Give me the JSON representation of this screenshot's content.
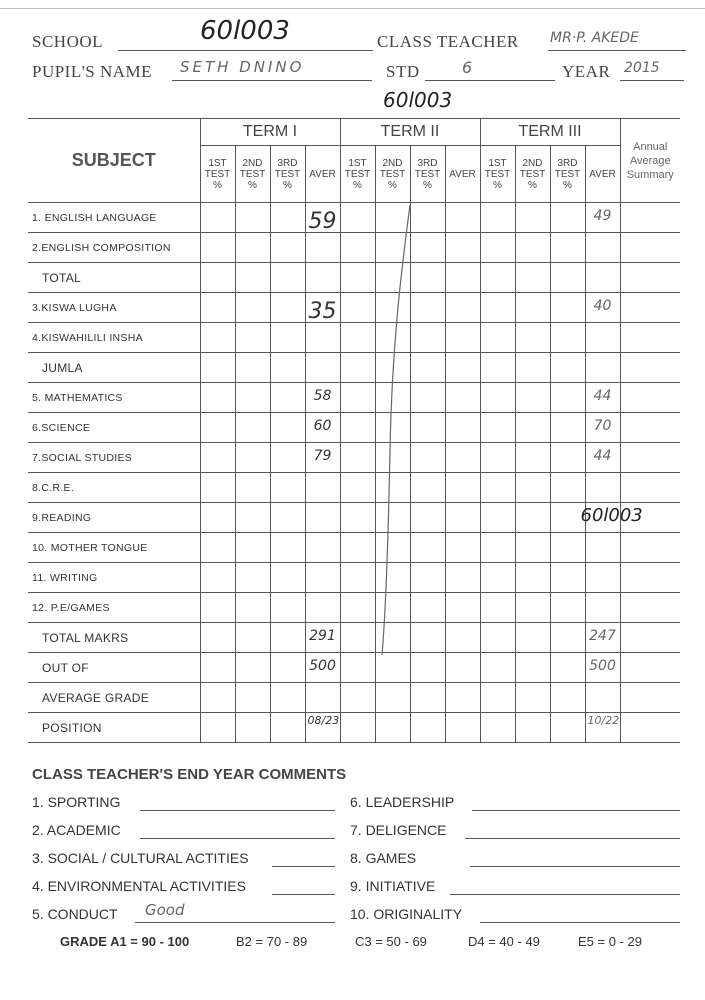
{
  "header": {
    "school_label": "SCHOOL",
    "school_value": "60l003",
    "class_teacher_label": "CLASS TEACHER",
    "class_teacher_value": "MR·P. AKEDE",
    "pupil_name_label": "PUPIL'S NAME",
    "pupil_name_value": "SETH DNINO",
    "std_label": "STD",
    "std_value": "6",
    "year_label": "YEAR",
    "year_value": "2015",
    "stamp_code": "60l003"
  },
  "table": {
    "subject_header": "SUBJECT",
    "terms": [
      "TERM I",
      "TERM II",
      "TERM III"
    ],
    "subcolumns": [
      {
        "line1": "1ST",
        "line2": "TEST",
        "line3": "%"
      },
      {
        "line1": "2ND",
        "line2": "TEST",
        "line3": "%"
      },
      {
        "line1": "3RD",
        "line2": "TEST",
        "line3": "%"
      },
      {
        "line1": "AVER",
        "line2": "",
        "line3": ""
      }
    ],
    "annual_header": [
      "Annual",
      "Average",
      "Summary"
    ],
    "rows": [
      {
        "label": "1. ENGLISH LANGUAGE",
        "t1_aver": "59",
        "t3_aver": "49"
      },
      {
        "label": "2.ENGLISH COMPOSITION"
      },
      {
        "label": "TOTAL",
        "big": true
      },
      {
        "label": "3.KISWA LUGHA",
        "t1_aver": "35",
        "t3_aver": "40"
      },
      {
        "label": "4.KISWAHILILI INSHA"
      },
      {
        "label": "JUMLA",
        "big": true
      },
      {
        "label": "5. MATHEMATICS",
        "t1_aver": "58",
        "t3_aver": "44"
      },
      {
        "label": "6.SCIENCE",
        "t1_aver": "60",
        "t3_aver": "70"
      },
      {
        "label": "7.SOCIAL STUDIES",
        "t1_aver": "79",
        "t3_aver": "44"
      },
      {
        "label": "8.C.R.E."
      },
      {
        "label": "9.READING",
        "annual_note": "60l003"
      },
      {
        "label": "10. MOTHER TONGUE"
      },
      {
        "label": "11. WRITING"
      },
      {
        "label": "12. P.E/GAMES"
      },
      {
        "label": "TOTAL MAKRS",
        "big": true,
        "t1_aver": "291",
        "t3_aver": "247"
      },
      {
        "label": "OUT OF",
        "big": true,
        "t1_aver": "500",
        "t3_aver": "500"
      },
      {
        "label": "AVERAGE GRADE",
        "big": true
      },
      {
        "label": "POSITION",
        "big": true,
        "t1_aver": "08/23",
        "t3_aver": "10/22"
      }
    ]
  },
  "comments": {
    "title": "CLASS TEACHER'S END YEAR COMMENTS",
    "items": [
      {
        "label": "1. SPORTING",
        "value": ""
      },
      {
        "label": "2. ACADEMIC",
        "value": ""
      },
      {
        "label": "3. SOCIAL / CULTURAL ACTITIES",
        "value": ""
      },
      {
        "label": "4. ENVIRONMENTAL ACTIVITIES",
        "value": ""
      },
      {
        "label": "5. CONDUCT",
        "value": "Good"
      },
      {
        "label": "6. LEADERSHIP",
        "value": ""
      },
      {
        "label": "7. DELIGENCE",
        "value": ""
      },
      {
        "label": "8. GAMES",
        "value": ""
      },
      {
        "label": "9. INITIATIVE",
        "value": ""
      },
      {
        "label": "10. ORIGINALITY",
        "value": ""
      }
    ]
  },
  "grading": [
    "GRADE A1 = 90 - 100",
    "B2 = 70 - 89",
    "C3 = 50 - 69",
    "D4 = 40 - 49",
    "E5 = 0 - 29"
  ]
}
